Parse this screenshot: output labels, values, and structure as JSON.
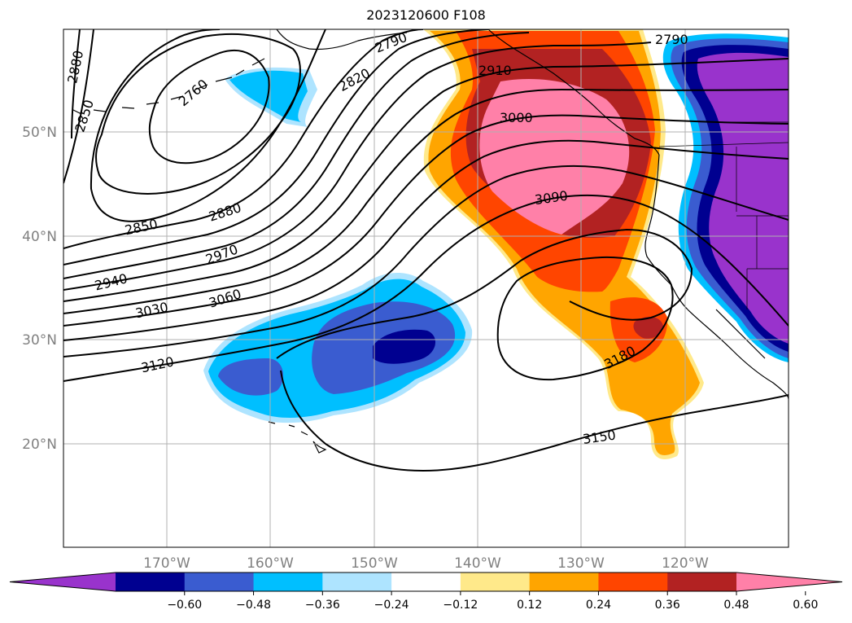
{
  "title": "2023120600 F108",
  "lat_labels": [
    "50°N",
    "40°N",
    "30°N",
    "20°N"
  ],
  "lon_labels": [
    "170°W",
    "160°W",
    "150°W",
    "140°W",
    "130°W",
    "120°W"
  ],
  "contour_labels": [
    "2880",
    "2850",
    "2760",
    "2790",
    "2820",
    "2910",
    "3000",
    "2790",
    "2850",
    "2880",
    "2970",
    "2940",
    "3030",
    "3060",
    "3090",
    "3120",
    "3180",
    "3150"
  ],
  "colorbar": {
    "tick_labels": [
      "−0.60",
      "−0.48",
      "−0.36",
      "−0.24",
      "−0.12",
      "0.12",
      "0.24",
      "0.36",
      "0.48",
      "0.60"
    ],
    "colors": [
      "#9933cc",
      "#000090",
      "#3a5cd0",
      "#00bfff",
      "#aee4ff",
      "#ffffff",
      "#ffe98a",
      "#ffa500",
      "#ff4500",
      "#b22222",
      "#ff80a8"
    ]
  },
  "colors": {
    "grid": "#b0b0b0",
    "axis_text": "#808080",
    "contour": "#000000"
  }
}
